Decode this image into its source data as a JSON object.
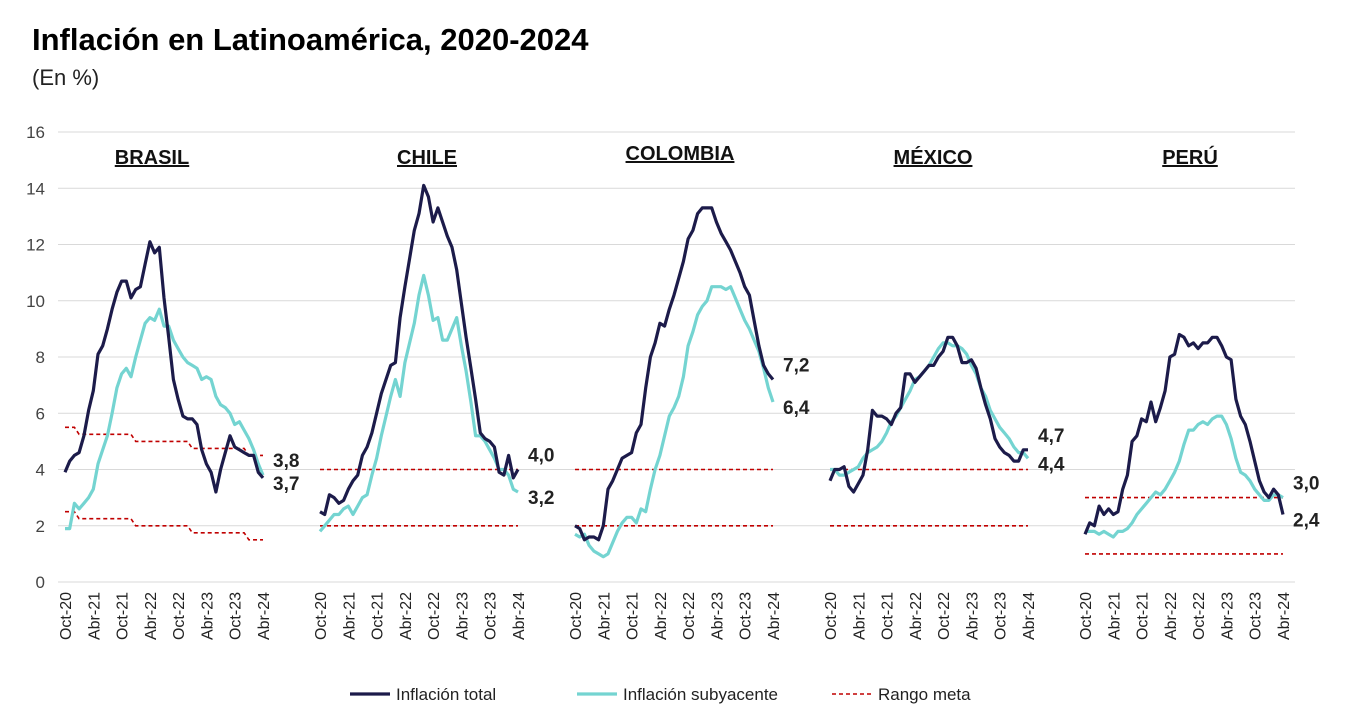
{
  "chart_data": {
    "type": "line",
    "title": "Inflación en Latinoamérica, 2020-2024",
    "subtitle": "(En %)",
    "categories": [
      "Oct-20",
      null,
      null,
      null,
      null,
      null,
      "Abr-21",
      null,
      null,
      null,
      null,
      null,
      "Oct-21",
      null,
      null,
      null,
      null,
      null,
      "Abr-22",
      null,
      null,
      null,
      null,
      null,
      "Oct-22",
      null,
      null,
      null,
      null,
      null,
      "Abr-23",
      null,
      null,
      null,
      null,
      null,
      "Oct-23",
      null,
      null,
      null,
      null,
      null,
      "Abr-24"
    ],
    "ylim": [
      0,
      16
    ],
    "yticks": [
      0,
      2,
      4,
      6,
      8,
      10,
      12,
      14,
      16
    ],
    "grid": true,
    "series": [
      {
        "name": "Inflación total",
        "color": "#1c1b4a",
        "label_color": "#1c1b4a"
      },
      {
        "name": "Inflación subyacente",
        "color": "#74d4d1",
        "label_color": "#1fb3b0"
      },
      {
        "name": "Rango meta",
        "color": "#c00000",
        "dashed": true
      }
    ],
    "panels": [
      {
        "name": "BRASIL",
        "series": [
          {
            "values": [
              3.9,
              4.3,
              4.5,
              4.6,
              5.2,
              6.1,
              6.8,
              8.1,
              8.4,
              9.0,
              9.7,
              10.3,
              10.7,
              10.7,
              10.1,
              10.4,
              10.5,
              11.3,
              12.1,
              11.7,
              11.9,
              10.1,
              8.7,
              7.2,
              6.5,
              5.9,
              5.8,
              5.8,
              5.6,
              4.7,
              4.2,
              3.9,
              3.2,
              4.0,
              4.6,
              5.2,
              4.8,
              4.7,
              4.6,
              4.5,
              4.5,
              3.9,
              3.7
            ],
            "end_label": "3,7"
          },
          {
            "values": [
              1.9,
              1.9,
              2.8,
              2.6,
              2.8,
              3.0,
              3.3,
              4.2,
              4.7,
              5.2,
              6.0,
              6.9,
              7.4,
              7.6,
              7.3,
              8.0,
              8.6,
              9.2,
              9.4,
              9.3,
              9.7,
              9.1,
              9.1,
              8.6,
              8.3,
              8.0,
              7.8,
              7.7,
              7.6,
              7.2,
              7.3,
              7.2,
              6.6,
              6.3,
              6.2,
              6.0,
              5.6,
              5.7,
              5.4,
              5.1,
              4.7,
              4.2,
              3.8
            ],
            "end_label": "3,8"
          }
        ],
        "target_range": {
          "high": [
            5.5,
            5.5,
            5.5,
            5.25,
            5.25,
            5.25,
            5.25,
            5.25,
            5.25,
            5.25,
            5.25,
            5.25,
            5.25,
            5.25,
            5.25,
            5,
            5,
            5,
            5,
            5,
            5,
            5,
            5,
            5,
            5,
            5,
            5,
            4.75,
            4.75,
            4.75,
            4.75,
            4.75,
            4.75,
            4.75,
            4.75,
            4.75,
            4.75,
            4.75,
            4.75,
            4.5,
            4.5,
            4.5,
            4.5
          ],
          "low": [
            2.5,
            2.5,
            2.5,
            2.25,
            2.25,
            2.25,
            2.25,
            2.25,
            2.25,
            2.25,
            2.25,
            2.25,
            2.25,
            2.25,
            2.25,
            2,
            2,
            2,
            2,
            2,
            2,
            2,
            2,
            2,
            2,
            2,
            2,
            1.75,
            1.75,
            1.75,
            1.75,
            1.75,
            1.75,
            1.75,
            1.75,
            1.75,
            1.75,
            1.75,
            1.75,
            1.5,
            1.5,
            1.5,
            1.5
          ]
        }
      },
      {
        "name": "CHILE",
        "series": [
          {
            "values": [
              2.5,
              2.4,
              3.1,
              3.0,
              2.8,
              2.9,
              3.3,
              3.6,
              3.8,
              4.5,
              4.8,
              5.3,
              6.0,
              6.7,
              7.2,
              7.7,
              7.8,
              9.4,
              10.5,
              11.5,
              12.5,
              13.1,
              14.1,
              13.7,
              12.8,
              13.3,
              12.8,
              12.3,
              11.9,
              11.1,
              9.9,
              8.7,
              7.6,
              6.5,
              5.3,
              5.1,
              5.0,
              4.8,
              3.9,
              3.8,
              4.5,
              3.7,
              4.0
            ],
            "end_label": "4,0"
          },
          {
            "values": [
              1.8,
              2.0,
              2.2,
              2.4,
              2.4,
              2.6,
              2.7,
              2.4,
              2.7,
              3.0,
              3.1,
              3.8,
              4.4,
              5.2,
              5.9,
              6.6,
              7.2,
              6.6,
              7.8,
              8.5,
              9.2,
              10.2,
              10.9,
              10.2,
              9.3,
              9.4,
              8.6,
              8.6,
              9.0,
              9.4,
              8.4,
              7.5,
              6.4,
              5.2,
              5.2,
              5.0,
              4.7,
              4.4,
              4.0,
              4.0,
              3.8,
              3.3,
              3.2
            ],
            "end_label": "3,2"
          }
        ],
        "target_range": {
          "high": [
            4,
            4,
            4,
            4,
            4,
            4,
            4,
            4,
            4,
            4,
            4,
            4,
            4,
            4,
            4,
            4,
            4,
            4,
            4,
            4,
            4,
            4,
            4,
            4,
            4,
            4,
            4,
            4,
            4,
            4,
            4,
            4,
            4,
            4,
            4,
            4,
            4,
            4,
            4,
            4,
            4,
            4,
            4
          ],
          "low": [
            2,
            2,
            2,
            2,
            2,
            2,
            2,
            2,
            2,
            2,
            2,
            2,
            2,
            2,
            2,
            2,
            2,
            2,
            2,
            2,
            2,
            2,
            2,
            2,
            2,
            2,
            2,
            2,
            2,
            2,
            2,
            2,
            2,
            2,
            2,
            2,
            2,
            2,
            2,
            2,
            2,
            2,
            2
          ]
        }
      },
      {
        "name": "COLOMBIA",
        "series": [
          {
            "values": [
              2.0,
              1.9,
              1.5,
              1.6,
              1.6,
              1.5,
              2.0,
              3.3,
              3.6,
              4.0,
              4.4,
              4.5,
              4.6,
              5.3,
              5.6,
              6.9,
              8.0,
              8.5,
              9.2,
              9.1,
              9.7,
              10.2,
              10.8,
              11.4,
              12.2,
              12.5,
              13.1,
              13.3,
              13.3,
              13.3,
              12.8,
              12.4,
              12.1,
              11.8,
              11.4,
              11.0,
              10.5,
              10.2,
              9.3,
              8.4,
              7.7,
              7.4,
              7.2
            ],
            "end_label": "7,2"
          },
          {
            "values": [
              1.7,
              1.6,
              1.7,
              1.3,
              1.1,
              1.0,
              0.9,
              1.0,
              1.4,
              1.8,
              2.1,
              2.3,
              2.3,
              2.1,
              2.6,
              2.5,
              3.3,
              4.0,
              4.5,
              5.2,
              5.9,
              6.2,
              6.6,
              7.3,
              8.4,
              8.9,
              9.5,
              9.8,
              10.0,
              10.5,
              10.5,
              10.5,
              10.4,
              10.5,
              10.1,
              9.7,
              9.3,
              9.0,
              8.6,
              8.2,
              7.6,
              6.9,
              6.4
            ],
            "end_label": "6,4"
          }
        ],
        "target_range": {
          "high": [
            4,
            4,
            4,
            4,
            4,
            4,
            4,
            4,
            4,
            4,
            4,
            4,
            4,
            4,
            4,
            4,
            4,
            4,
            4,
            4,
            4,
            4,
            4,
            4,
            4,
            4,
            4,
            4,
            4,
            4,
            4,
            4,
            4,
            4,
            4,
            4,
            4,
            4,
            4,
            4,
            4,
            4,
            4
          ],
          "low": [
            2,
            2,
            2,
            2,
            2,
            2,
            2,
            2,
            2,
            2,
            2,
            2,
            2,
            2,
            2,
            2,
            2,
            2,
            2,
            2,
            2,
            2,
            2,
            2,
            2,
            2,
            2,
            2,
            2,
            2,
            2,
            2,
            2,
            2,
            2,
            2,
            2,
            2,
            2,
            2,
            2,
            2,
            2
          ]
        }
      },
      {
        "name": "MÉXICO",
        "series": [
          {
            "values": [
              3.6,
              4.0,
              4.0,
              4.1,
              3.4,
              3.2,
              3.5,
              3.8,
              4.7,
              6.1,
              5.9,
              5.9,
              5.8,
              5.6,
              6.0,
              6.2,
              7.4,
              7.4,
              7.1,
              7.3,
              7.5,
              7.7,
              7.7,
              8.0,
              8.2,
              8.7,
              8.7,
              8.4,
              7.8,
              7.8,
              7.9,
              7.6,
              6.9,
              6.3,
              5.8,
              5.1,
              4.8,
              4.6,
              4.5,
              4.3,
              4.3,
              4.7,
              4.7
            ],
            "end_label": "4,7"
          },
          {
            "values": [
              4.0,
              4.0,
              3.8,
              3.8,
              3.9,
              4.0,
              4.1,
              4.4,
              4.6,
              4.7,
              4.8,
              5.0,
              5.3,
              5.7,
              5.9,
              6.2,
              6.5,
              6.8,
              7.2,
              7.3,
              7.5,
              7.7,
              8.0,
              8.3,
              8.5,
              8.5,
              8.4,
              8.4,
              8.3,
              8.1,
              7.7,
              7.4,
              6.9,
              6.6,
              6.1,
              5.8,
              5.5,
              5.3,
              5.1,
              4.8,
              4.6,
              4.6,
              4.4
            ],
            "end_label": "4,4"
          }
        ],
        "target_range": {
          "high": [
            4,
            4,
            4,
            4,
            4,
            4,
            4,
            4,
            4,
            4,
            4,
            4,
            4,
            4,
            4,
            4,
            4,
            4,
            4,
            4,
            4,
            4,
            4,
            4,
            4,
            4,
            4,
            4,
            4,
            4,
            4,
            4,
            4,
            4,
            4,
            4,
            4,
            4,
            4,
            4,
            4,
            4,
            4
          ],
          "low": [
            2,
            2,
            2,
            2,
            2,
            2,
            2,
            2,
            2,
            2,
            2,
            2,
            2,
            2,
            2,
            2,
            2,
            2,
            2,
            2,
            2,
            2,
            2,
            2,
            2,
            2,
            2,
            2,
            2,
            2,
            2,
            2,
            2,
            2,
            2,
            2,
            2,
            2,
            2,
            2,
            2,
            2,
            2
          ]
        }
      },
      {
        "name": "PERÚ",
        "series": [
          {
            "values": [
              1.7,
              2.1,
              2.0,
              2.7,
              2.4,
              2.6,
              2.4,
              2.5,
              3.3,
              3.8,
              5.0,
              5.2,
              5.8,
              5.7,
              6.4,
              5.7,
              6.2,
              6.8,
              8.0,
              8.1,
              8.8,
              8.7,
              8.4,
              8.5,
              8.3,
              8.5,
              8.5,
              8.7,
              8.7,
              8.4,
              8.0,
              7.9,
              6.5,
              5.9,
              5.6,
              5.0,
              4.3,
              3.6,
              3.2,
              3.0,
              3.3,
              3.1,
              2.4
            ],
            "end_label": "2,4"
          },
          {
            "values": [
              1.8,
              1.8,
              1.8,
              1.7,
              1.8,
              1.7,
              1.6,
              1.8,
              1.8,
              1.9,
              2.1,
              2.4,
              2.6,
              2.8,
              3.0,
              3.2,
              3.1,
              3.3,
              3.6,
              3.9,
              4.3,
              4.9,
              5.4,
              5.4,
              5.6,
              5.7,
              5.6,
              5.8,
              5.9,
              5.9,
              5.6,
              5.1,
              4.4,
              3.9,
              3.8,
              3.6,
              3.3,
              3.1,
              2.9,
              2.9,
              3.1,
              3.1,
              3.0
            ],
            "end_label": "3,0"
          }
        ],
        "target_range": {
          "high": [
            3,
            3,
            3,
            3,
            3,
            3,
            3,
            3,
            3,
            3,
            3,
            3,
            3,
            3,
            3,
            3,
            3,
            3,
            3,
            3,
            3,
            3,
            3,
            3,
            3,
            3,
            3,
            3,
            3,
            3,
            3,
            3,
            3,
            3,
            3,
            3,
            3,
            3,
            3,
            3,
            3,
            3,
            3
          ],
          "low": [
            1,
            1,
            1,
            1,
            1,
            1,
            1,
            1,
            1,
            1,
            1,
            1,
            1,
            1,
            1,
            1,
            1,
            1,
            1,
            1,
            1,
            1,
            1,
            1,
            1,
            1,
            1,
            1,
            1,
            1,
            1,
            1,
            1,
            1,
            1,
            1,
            1,
            1,
            1,
            1,
            1,
            1,
            1
          ]
        }
      }
    ]
  }
}
